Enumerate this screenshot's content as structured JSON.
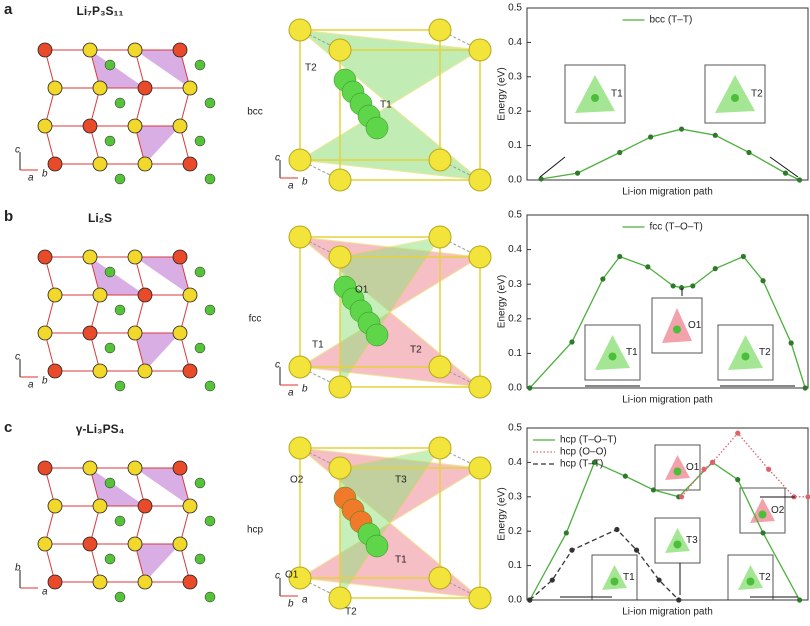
{
  "panels": [
    {
      "label": "a",
      "structure": "Li₇P₃S₁₁",
      "lattice": "bcc",
      "left_axes": [
        "c",
        "b",
        "a"
      ],
      "mid_axes": [
        "c",
        "b",
        "a"
      ],
      "mid_sites": [
        "T2",
        "T1"
      ],
      "insets": [
        "T1",
        "T2"
      ]
    },
    {
      "label": "b",
      "structure": "Li₂S",
      "lattice": "fcc",
      "left_axes": [
        "c",
        "b",
        "a"
      ],
      "mid_axes": [
        "c",
        "b",
        "a"
      ],
      "mid_sites": [
        "O1",
        "T1",
        "T2"
      ],
      "insets": [
        "T1",
        "O1",
        "T2"
      ]
    },
    {
      "label": "c",
      "structure": "γ-Li₃PS₄",
      "lattice": "hcp",
      "left_axes": [
        "b",
        "a"
      ],
      "mid_axes": [
        "c",
        "a",
        "b"
      ],
      "mid_sites": [
        "O2",
        "T3",
        "O1",
        "T1",
        "T2"
      ],
      "insets": [
        "O1",
        "O2",
        "T3",
        "T1",
        "T2"
      ]
    }
  ],
  "chart_data": [
    {
      "type": "line",
      "xlabel": "Li-ion migration path",
      "ylabel": "Energy (eV)",
      "xlim": [
        0,
        1
      ],
      "ylim": [
        0,
        0.5
      ],
      "yticks": [
        {
          "value": 0,
          "label": "0.0"
        },
        0.1,
        0.2,
        0.3,
        0.4,
        0.5
      ],
      "legend": "top",
      "series": [
        {
          "name": "bcc (T–T)",
          "color": "#4caf3c",
          "style": "solid",
          "x": [
            0.05,
            0.18,
            0.33,
            0.44,
            0.55,
            0.67,
            0.79,
            0.92,
            0.97
          ],
          "values": [
            0.003,
            0.02,
            0.08,
            0.125,
            0.148,
            0.13,
            0.08,
            0.02,
            0.0
          ]
        }
      ]
    },
    {
      "type": "line",
      "xlabel": "Li-ion migration path",
      "ylabel": "Energy (eV)",
      "xlim": [
        0,
        1
      ],
      "ylim": [
        0,
        0.5
      ],
      "yticks": [
        {
          "value": 0,
          "label": "0.0"
        },
        0.1,
        0.2,
        0.3,
        0.4,
        0.5
      ],
      "legend": "top",
      "series": [
        {
          "name": "fcc (T–O–T)",
          "color": "#4caf3c",
          "style": "solid",
          "x": [
            0.01,
            0.16,
            0.27,
            0.33,
            0.43,
            0.52,
            0.55,
            0.59,
            0.67,
            0.77,
            0.84,
            0.94,
            0.99
          ],
          "values": [
            0.0,
            0.133,
            0.315,
            0.38,
            0.35,
            0.295,
            0.29,
            0.295,
            0.345,
            0.38,
            0.31,
            0.13,
            0.0
          ]
        }
      ]
    },
    {
      "type": "line",
      "xlabel": "Li-ion migration path",
      "ylabel": "Energy (eV)",
      "xlim": [
        0,
        1
      ],
      "ylim": [
        0,
        0.5
      ],
      "yticks": [
        {
          "value": 0,
          "label": "0.0"
        },
        0.1,
        0.2,
        0.3,
        0.4,
        0.5
      ],
      "legend": "upper left",
      "series": [
        {
          "name": "hcp (T–O–T)",
          "color": "#4caf3c",
          "style": "solid",
          "x": [
            0.01,
            0.14,
            0.24,
            0.35,
            0.45,
            0.54,
            0.66,
            0.75,
            0.84,
            0.97
          ],
          "values": [
            0.0,
            0.195,
            0.4,
            0.36,
            0.32,
            0.3,
            0.4,
            0.35,
            0.195,
            0.0
          ]
        },
        {
          "name": "hcp (O–O)",
          "color": "#e0606e",
          "style": "dotted",
          "x": [
            0.55,
            0.63,
            0.66,
            0.75,
            0.86,
            0.95,
            1.0
          ],
          "values": [
            0.3,
            0.38,
            0.4,
            0.485,
            0.38,
            0.3,
            0.3
          ]
        },
        {
          "name": "hcp (T–T)",
          "color": "#333333",
          "style": "dashed",
          "x": [
            0.01,
            0.09,
            0.16,
            0.32,
            0.39,
            0.47,
            0.54
          ],
          "values": [
            0.0,
            0.058,
            0.145,
            0.205,
            0.145,
            0.058,
            0.0
          ]
        }
      ]
    }
  ]
}
